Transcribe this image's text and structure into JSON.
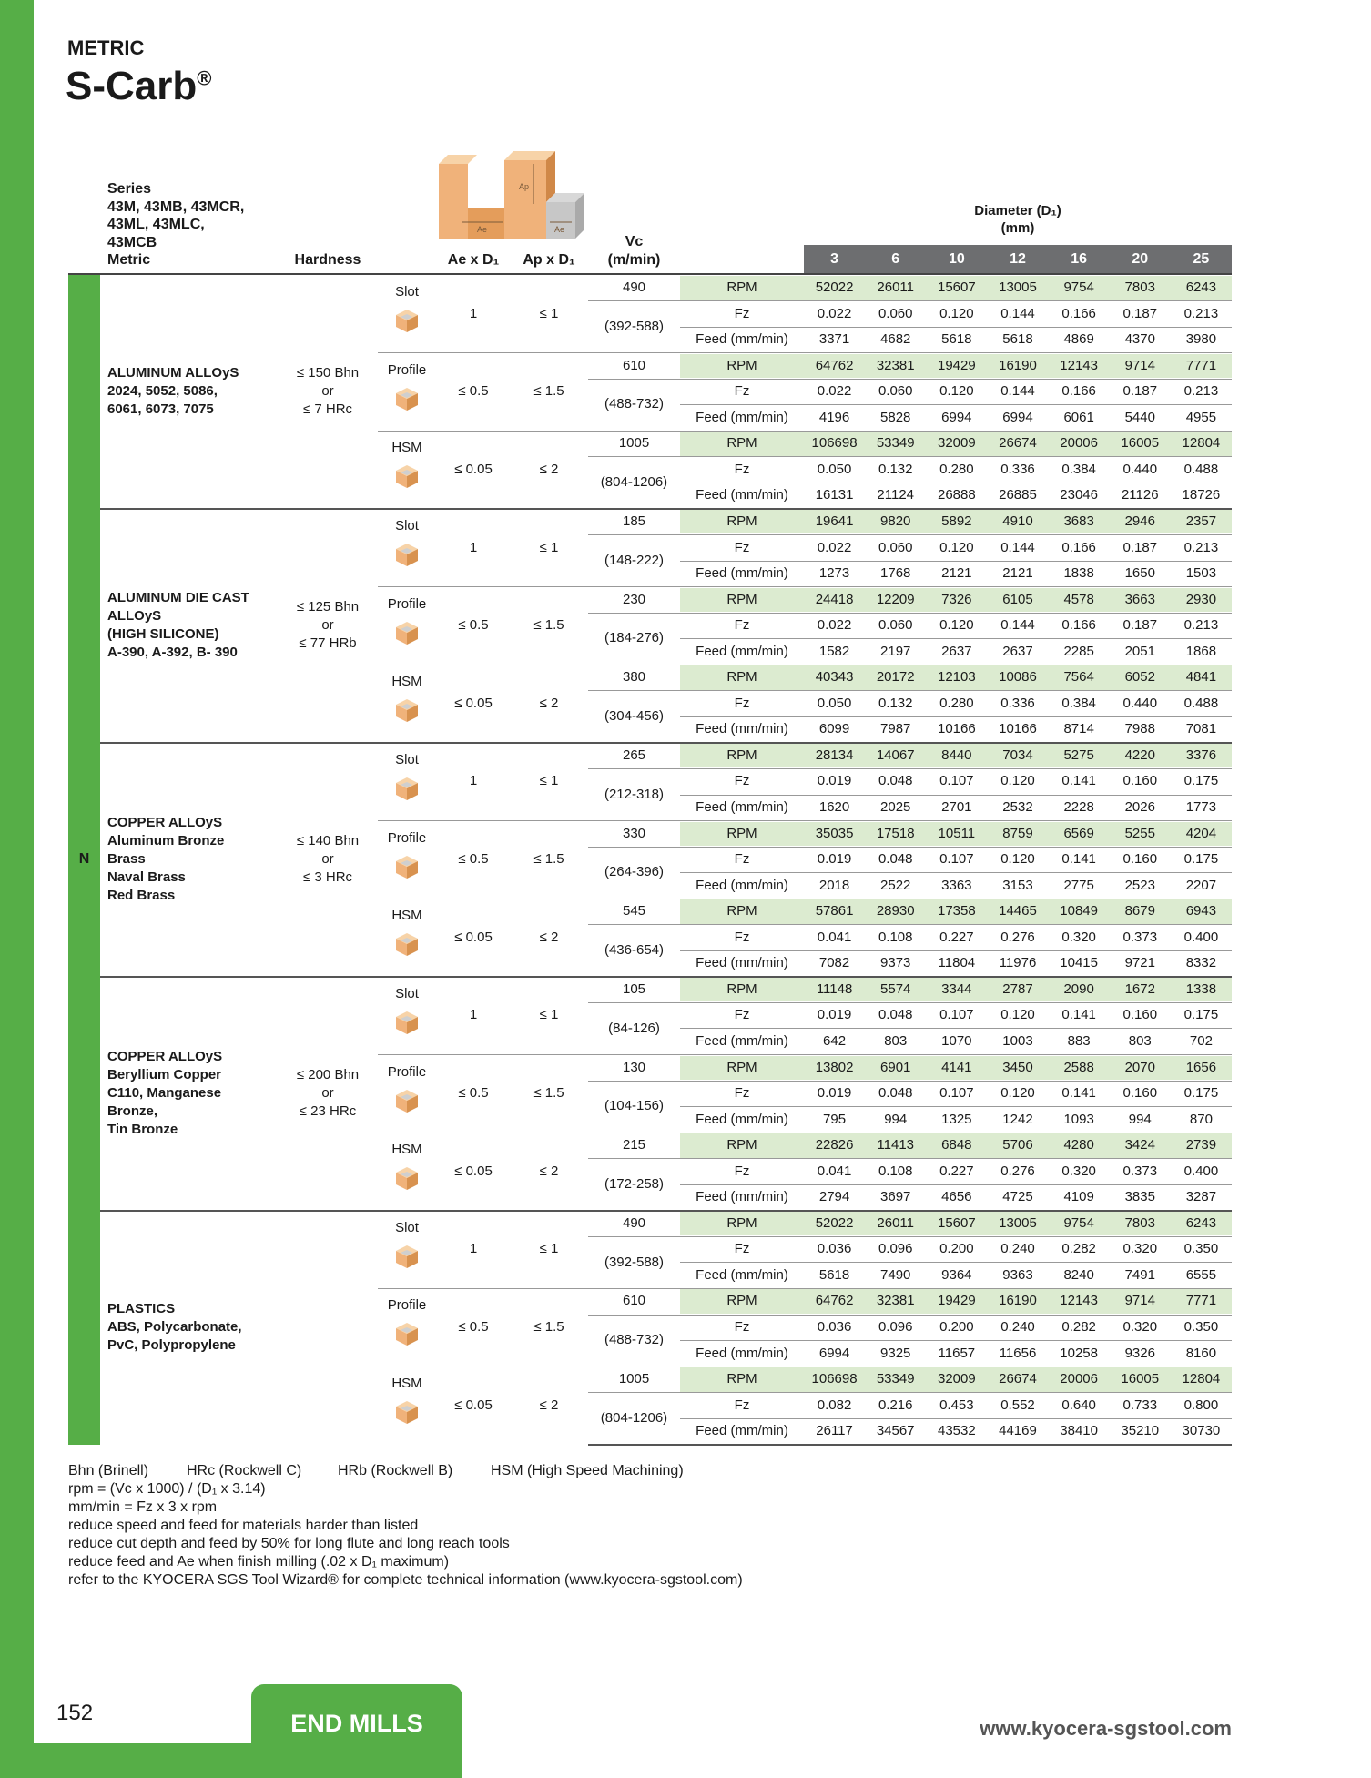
{
  "header": {
    "unit": "METRIC",
    "title": "S-Carb",
    "title_mark": "®"
  },
  "diagram": {
    "labels": [
      "Ap",
      "Ae",
      "Ae"
    ]
  },
  "table": {
    "headers": {
      "series_lines": [
        "Series",
        "43M, 43MB, 43MCR,",
        "43ML, 43MLC,",
        "43MCB",
        "Metric"
      ],
      "hardness": "Hardness",
      "ae": "Ae x D₁",
      "ap": "Ap x D₁",
      "vc_lines": [
        "Vc",
        "(m/min)"
      ],
      "diameter_lines": [
        "Diameter (D₁)",
        "(mm)"
      ]
    },
    "diameters": [
      3,
      6,
      10,
      12,
      16,
      20,
      25
    ],
    "group_label": "N",
    "materials": [
      {
        "name_lines": [
          "ALUMINUM ALLOyS",
          "2024, 5052, 5086,",
          "6061, 6073, 7075"
        ],
        "hardness_lines": [
          "≤ 150 Bhn",
          "or",
          "≤ 7 HRc"
        ],
        "ops": [
          {
            "name": "Slot",
            "ae": "1",
            "ap": "≤ 1",
            "vc": "490",
            "vc_range": "(392-588)",
            "rows": [
              {
                "label": "RPM",
                "values": [
                  "52022",
                  "26011",
                  "15607",
                  "13005",
                  "9754",
                  "7803",
                  "6243"
                ]
              },
              {
                "label": "Fz",
                "values": [
                  "0.022",
                  "0.060",
                  "0.120",
                  "0.144",
                  "0.166",
                  "0.187",
                  "0.213"
                ]
              },
              {
                "label": "Feed (mm/min)",
                "values": [
                  "3371",
                  "4682",
                  "5618",
                  "5618",
                  "4869",
                  "4370",
                  "3980"
                ]
              }
            ]
          },
          {
            "name": "Profile",
            "ae": "≤ 0.5",
            "ap": "≤ 1.5",
            "vc": "610",
            "vc_range": "(488-732)",
            "rows": [
              {
                "label": "RPM",
                "values": [
                  "64762",
                  "32381",
                  "19429",
                  "16190",
                  "12143",
                  "9714",
                  "7771"
                ]
              },
              {
                "label": "Fz",
                "values": [
                  "0.022",
                  "0.060",
                  "0.120",
                  "0.144",
                  "0.166",
                  "0.187",
                  "0.213"
                ]
              },
              {
                "label": "Feed (mm/min)",
                "values": [
                  "4196",
                  "5828",
                  "6994",
                  "6994",
                  "6061",
                  "5440",
                  "4955"
                ]
              }
            ]
          },
          {
            "name": "HSM",
            "ae": "≤ 0.05",
            "ap": "≤ 2",
            "vc": "1005",
            "vc_range": "(804-1206)",
            "rows": [
              {
                "label": "RPM",
                "values": [
                  "106698",
                  "53349",
                  "32009",
                  "26674",
                  "20006",
                  "16005",
                  "12804"
                ]
              },
              {
                "label": "Fz",
                "values": [
                  "0.050",
                  "0.132",
                  "0.280",
                  "0.336",
                  "0.384",
                  "0.440",
                  "0.488"
                ]
              },
              {
                "label": "Feed (mm/min)",
                "values": [
                  "16131",
                  "21124",
                  "26888",
                  "26885",
                  "23046",
                  "21126",
                  "18726"
                ]
              }
            ]
          }
        ]
      },
      {
        "name_lines": [
          "ALUMINUM DIE CAST",
          "ALLOyS",
          "(HIGH SILICONE)",
          "A-390, A-392, B- 390"
        ],
        "hardness_lines": [
          "≤ 125 Bhn",
          "or",
          "≤ 77 HRb"
        ],
        "ops": [
          {
            "name": "Slot",
            "ae": "1",
            "ap": "≤ 1",
            "vc": "185",
            "vc_range": "(148-222)",
            "rows": [
              {
                "label": "RPM",
                "values": [
                  "19641",
                  "9820",
                  "5892",
                  "4910",
                  "3683",
                  "2946",
                  "2357"
                ]
              },
              {
                "label": "Fz",
                "values": [
                  "0.022",
                  "0.060",
                  "0.120",
                  "0.144",
                  "0.166",
                  "0.187",
                  "0.213"
                ]
              },
              {
                "label": "Feed (mm/min)",
                "values": [
                  "1273",
                  "1768",
                  "2121",
                  "2121",
                  "1838",
                  "1650",
                  "1503"
                ]
              }
            ]
          },
          {
            "name": "Profile",
            "ae": "≤ 0.5",
            "ap": "≤ 1.5",
            "vc": "230",
            "vc_range": "(184-276)",
            "rows": [
              {
                "label": "RPM",
                "values": [
                  "24418",
                  "12209",
                  "7326",
                  "6105",
                  "4578",
                  "3663",
                  "2930"
                ]
              },
              {
                "label": "Fz",
                "values": [
                  "0.022",
                  "0.060",
                  "0.120",
                  "0.144",
                  "0.166",
                  "0.187",
                  "0.213"
                ]
              },
              {
                "label": "Feed (mm/min)",
                "values": [
                  "1582",
                  "2197",
                  "2637",
                  "2637",
                  "2285",
                  "2051",
                  "1868"
                ]
              }
            ]
          },
          {
            "name": "HSM",
            "ae": "≤ 0.05",
            "ap": "≤ 2",
            "vc": "380",
            "vc_range": "(304-456)",
            "rows": [
              {
                "label": "RPM",
                "values": [
                  "40343",
                  "20172",
                  "12103",
                  "10086",
                  "7564",
                  "6052",
                  "4841"
                ]
              },
              {
                "label": "Fz",
                "values": [
                  "0.050",
                  "0.132",
                  "0.280",
                  "0.336",
                  "0.384",
                  "0.440",
                  "0.488"
                ]
              },
              {
                "label": "Feed (mm/min)",
                "values": [
                  "6099",
                  "7987",
                  "10166",
                  "10166",
                  "8714",
                  "7988",
                  "7081"
                ]
              }
            ]
          }
        ]
      },
      {
        "name_lines": [
          "COPPER ALLOyS",
          "Aluminum Bronze",
          "Brass",
          "Naval Brass",
          "Red Brass"
        ],
        "hardness_lines": [
          "≤ 140 Bhn",
          "or",
          "≤ 3 HRc"
        ],
        "ops": [
          {
            "name": "Slot",
            "ae": "1",
            "ap": "≤ 1",
            "vc": "265",
            "vc_range": "(212-318)",
            "rows": [
              {
                "label": "RPM",
                "values": [
                  "28134",
                  "14067",
                  "8440",
                  "7034",
                  "5275",
                  "4220",
                  "3376"
                ]
              },
              {
                "label": "Fz",
                "values": [
                  "0.019",
                  "0.048",
                  "0.107",
                  "0.120",
                  "0.141",
                  "0.160",
                  "0.175"
                ]
              },
              {
                "label": "Feed (mm/min)",
                "values": [
                  "1620",
                  "2025",
                  "2701",
                  "2532",
                  "2228",
                  "2026",
                  "1773"
                ]
              }
            ]
          },
          {
            "name": "Profile",
            "ae": "≤ 0.5",
            "ap": "≤ 1.5",
            "vc": "330",
            "vc_range": "(264-396)",
            "rows": [
              {
                "label": "RPM",
                "values": [
                  "35035",
                  "17518",
                  "10511",
                  "8759",
                  "6569",
                  "5255",
                  "4204"
                ]
              },
              {
                "label": "Fz",
                "values": [
                  "0.019",
                  "0.048",
                  "0.107",
                  "0.120",
                  "0.141",
                  "0.160",
                  "0.175"
                ]
              },
              {
                "label": "Feed (mm/min)",
                "values": [
                  "2018",
                  "2522",
                  "3363",
                  "3153",
                  "2775",
                  "2523",
                  "2207"
                ]
              }
            ]
          },
          {
            "name": "HSM",
            "ae": "≤ 0.05",
            "ap": "≤ 2",
            "vc": "545",
            "vc_range": "(436-654)",
            "rows": [
              {
                "label": "RPM",
                "values": [
                  "57861",
                  "28930",
                  "17358",
                  "14465",
                  "10849",
                  "8679",
                  "6943"
                ]
              },
              {
                "label": "Fz",
                "values": [
                  "0.041",
                  "0.108",
                  "0.227",
                  "0.276",
                  "0.320",
                  "0.373",
                  "0.400"
                ]
              },
              {
                "label": "Feed (mm/min)",
                "values": [
                  "7082",
                  "9373",
                  "11804",
                  "11976",
                  "10415",
                  "9721",
                  "8332"
                ]
              }
            ]
          }
        ]
      },
      {
        "name_lines": [
          "COPPER ALLOyS",
          "Beryllium Copper",
          "C110, Manganese",
          "Bronze,",
          "Tin Bronze"
        ],
        "hardness_lines": [
          "≤ 200 Bhn",
          "or",
          "≤ 23 HRc"
        ],
        "ops": [
          {
            "name": "Slot",
            "ae": "1",
            "ap": "≤ 1",
            "vc": "105",
            "vc_range": "(84-126)",
            "rows": [
              {
                "label": "RPM",
                "values": [
                  "11148",
                  "5574",
                  "3344",
                  "2787",
                  "2090",
                  "1672",
                  "1338"
                ]
              },
              {
                "label": "Fz",
                "values": [
                  "0.019",
                  "0.048",
                  "0.107",
                  "0.120",
                  "0.141",
                  "0.160",
                  "0.175"
                ]
              },
              {
                "label": "Feed (mm/min)",
                "values": [
                  "642",
                  "803",
                  "1070",
                  "1003",
                  "883",
                  "803",
                  "702"
                ]
              }
            ]
          },
          {
            "name": "Profile",
            "ae": "≤ 0.5",
            "ap": "≤ 1.5",
            "vc": "130",
            "vc_range": "(104-156)",
            "rows": [
              {
                "label": "RPM",
                "values": [
                  "13802",
                  "6901",
                  "4141",
                  "3450",
                  "2588",
                  "2070",
                  "1656"
                ]
              },
              {
                "label": "Fz",
                "values": [
                  "0.019",
                  "0.048",
                  "0.107",
                  "0.120",
                  "0.141",
                  "0.160",
                  "0.175"
                ]
              },
              {
                "label": "Feed (mm/min)",
                "values": [
                  "795",
                  "994",
                  "1325",
                  "1242",
                  "1093",
                  "994",
                  "870"
                ]
              }
            ]
          },
          {
            "name": "HSM",
            "ae": "≤ 0.05",
            "ap": "≤ 2",
            "vc": "215",
            "vc_range": "(172-258)",
            "rows": [
              {
                "label": "RPM",
                "values": [
                  "22826",
                  "11413",
                  "6848",
                  "5706",
                  "4280",
                  "3424",
                  "2739"
                ]
              },
              {
                "label": "Fz",
                "values": [
                  "0.041",
                  "0.108",
                  "0.227",
                  "0.276",
                  "0.320",
                  "0.373",
                  "0.400"
                ]
              },
              {
                "label": "Feed (mm/min)",
                "values": [
                  "2794",
                  "3697",
                  "4656",
                  "4725",
                  "4109",
                  "3835",
                  "3287"
                ]
              }
            ]
          }
        ]
      },
      {
        "name_lines": [
          "PLASTICS",
          "ABS, Polycarbonate,",
          "PvC, Polypropylene"
        ],
        "ops": [
          {
            "name": "Slot",
            "ae": "1",
            "ap": "≤ 1",
            "vc": "490",
            "vc_range": "(392-588)",
            "rows": [
              {
                "label": "RPM",
                "values": [
                  "52022",
                  "26011",
                  "15607",
                  "13005",
                  "9754",
                  "7803",
                  "6243"
                ]
              },
              {
                "label": "Fz",
                "values": [
                  "0.036",
                  "0.096",
                  "0.200",
                  "0.240",
                  "0.282",
                  "0.320",
                  "0.350"
                ]
              },
              {
                "label": "Feed (mm/min)",
                "values": [
                  "5618",
                  "7490",
                  "9364",
                  "9363",
                  "8240",
                  "7491",
                  "6555"
                ]
              }
            ]
          },
          {
            "name": "Profile",
            "ae": "≤ 0.5",
            "ap": "≤ 1.5",
            "vc": "610",
            "vc_range": "(488-732)",
            "rows": [
              {
                "label": "RPM",
                "values": [
                  "64762",
                  "32381",
                  "19429",
                  "16190",
                  "12143",
                  "9714",
                  "7771"
                ]
              },
              {
                "label": "Fz",
                "values": [
                  "0.036",
                  "0.096",
                  "0.200",
                  "0.240",
                  "0.282",
                  "0.320",
                  "0.350"
                ]
              },
              {
                "label": "Feed (mm/min)",
                "values": [
                  "6994",
                  "9325",
                  "11657",
                  "11656",
                  "10258",
                  "9326",
                  "8160"
                ]
              }
            ]
          },
          {
            "name": "HSM",
            "ae": "≤ 0.05",
            "ap": "≤ 2",
            "vc": "1005",
            "vc_range": "(804-1206)",
            "rows": [
              {
                "label": "RPM",
                "values": [
                  "106698",
                  "53349",
                  "32009",
                  "26674",
                  "20006",
                  "16005",
                  "12804"
                ]
              },
              {
                "label": "Fz",
                "values": [
                  "0.082",
                  "0.216",
                  "0.453",
                  "0.552",
                  "0.640",
                  "0.733",
                  "0.800"
                ]
              },
              {
                "label": "Feed (mm/min)",
                "values": [
                  "26117",
                  "34567",
                  "43532",
                  "44169",
                  "38410",
                  "35210",
                  "30730"
                ]
              }
            ]
          }
        ]
      }
    ]
  },
  "notes": {
    "legend": [
      "Bhn (Brinell)",
      "HRc (Rockwell C)",
      "HRb (Rockwell B)",
      "HSM (High Speed Machining)"
    ],
    "lines": [
      "rpm = (Vc x 1000) / (D₁ x 3.14)",
      "mm/min = Fz x 3 x rpm",
      "reduce speed and feed for materials harder than listed",
      "reduce cut depth and feed by 50% for long flute and long reach tools",
      "reduce feed and Ae when finish milling (.02 x D₁ maximum)",
      "refer to the KYOCERA SGS Tool Wizard® for complete technical information (www.kyocera-sgstool.com)"
    ]
  },
  "footer": {
    "page_number": "152",
    "section": "END MILLS",
    "url": "www.kyocera-sgstool.com"
  }
}
